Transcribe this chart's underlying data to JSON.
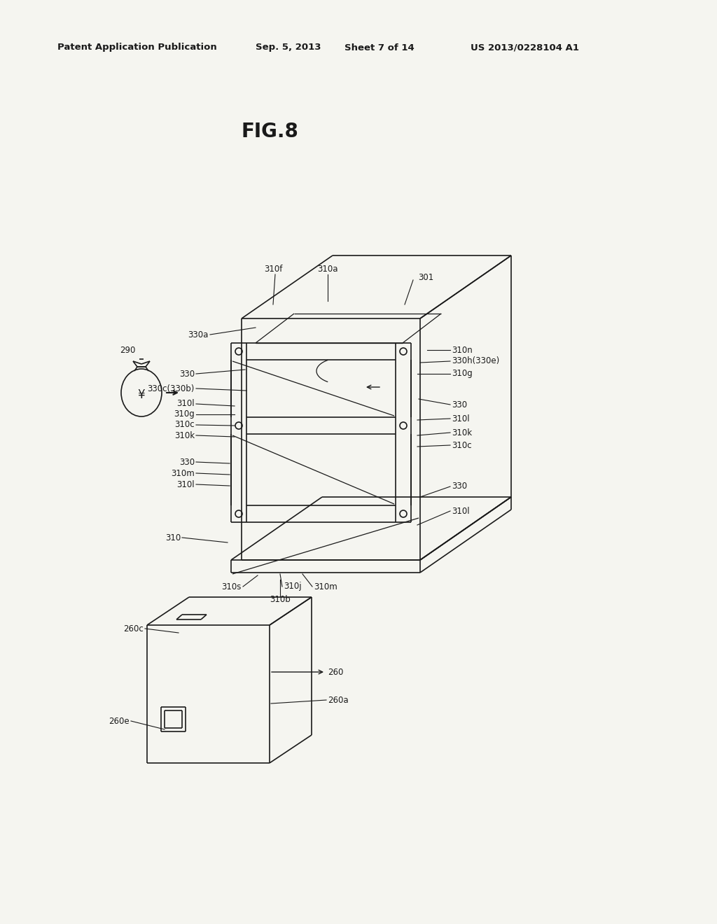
{
  "background_color": "#f5f5f0",
  "header_line1": "Patent Application Publication",
  "header_date": "Sep. 5, 2013",
  "header_sheet": "Sheet 7 of 14",
  "header_patent": "US 2013/0228104 A1",
  "figure_title": "FIG.8",
  "line_color": "#1a1a1a",
  "label_fontsize": 8.5,
  "title_fontsize": 20,
  "header_fontsize": 9.5
}
